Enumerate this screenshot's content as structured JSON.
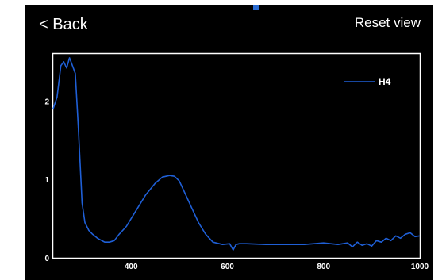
{
  "nav": {
    "back_label": "< Back",
    "reset_label": "Reset view"
  },
  "colors": {
    "background": "#000000",
    "series": "#1f5fd6",
    "axis": "#ffffff"
  },
  "chart_data": {
    "type": "line",
    "title": "",
    "xlabel": "",
    "ylabel": "",
    "xlim": [
      238,
      1000
    ],
    "ylim": [
      0,
      2.6
    ],
    "x_ticks": [
      400,
      600,
      800,
      1000
    ],
    "y_ticks": [
      0,
      1,
      2
    ],
    "grid": false,
    "legend": "top-right",
    "series": [
      {
        "name": "H4",
        "color": "#1f5fd6",
        "x": [
          238,
          246,
          254,
          260,
          266,
          272,
          278,
          284,
          290,
          294,
          298,
          304,
          312,
          320,
          330,
          345,
          355,
          365,
          375,
          390,
          410,
          430,
          450,
          465,
          480,
          490,
          500,
          510,
          525,
          540,
          555,
          570,
          590,
          605,
          612,
          618,
          625,
          640,
          680,
          720,
          760,
          800,
          830,
          850,
          860,
          870,
          880,
          890,
          900,
          910,
          920,
          930,
          940,
          950,
          960,
          970,
          980,
          990,
          1000
        ],
        "y": [
          1.9,
          2.05,
          2.45,
          2.5,
          2.42,
          2.55,
          2.45,
          2.35,
          1.7,
          1.2,
          0.7,
          0.45,
          0.35,
          0.3,
          0.25,
          0.2,
          0.2,
          0.22,
          0.3,
          0.4,
          0.6,
          0.8,
          0.95,
          1.03,
          1.05,
          1.04,
          0.98,
          0.85,
          0.65,
          0.45,
          0.3,
          0.2,
          0.17,
          0.18,
          0.1,
          0.17,
          0.18,
          0.18,
          0.17,
          0.17,
          0.17,
          0.19,
          0.17,
          0.19,
          0.14,
          0.2,
          0.16,
          0.18,
          0.15,
          0.22,
          0.2,
          0.25,
          0.22,
          0.28,
          0.25,
          0.3,
          0.32,
          0.27,
          0.28
        ]
      }
    ]
  }
}
